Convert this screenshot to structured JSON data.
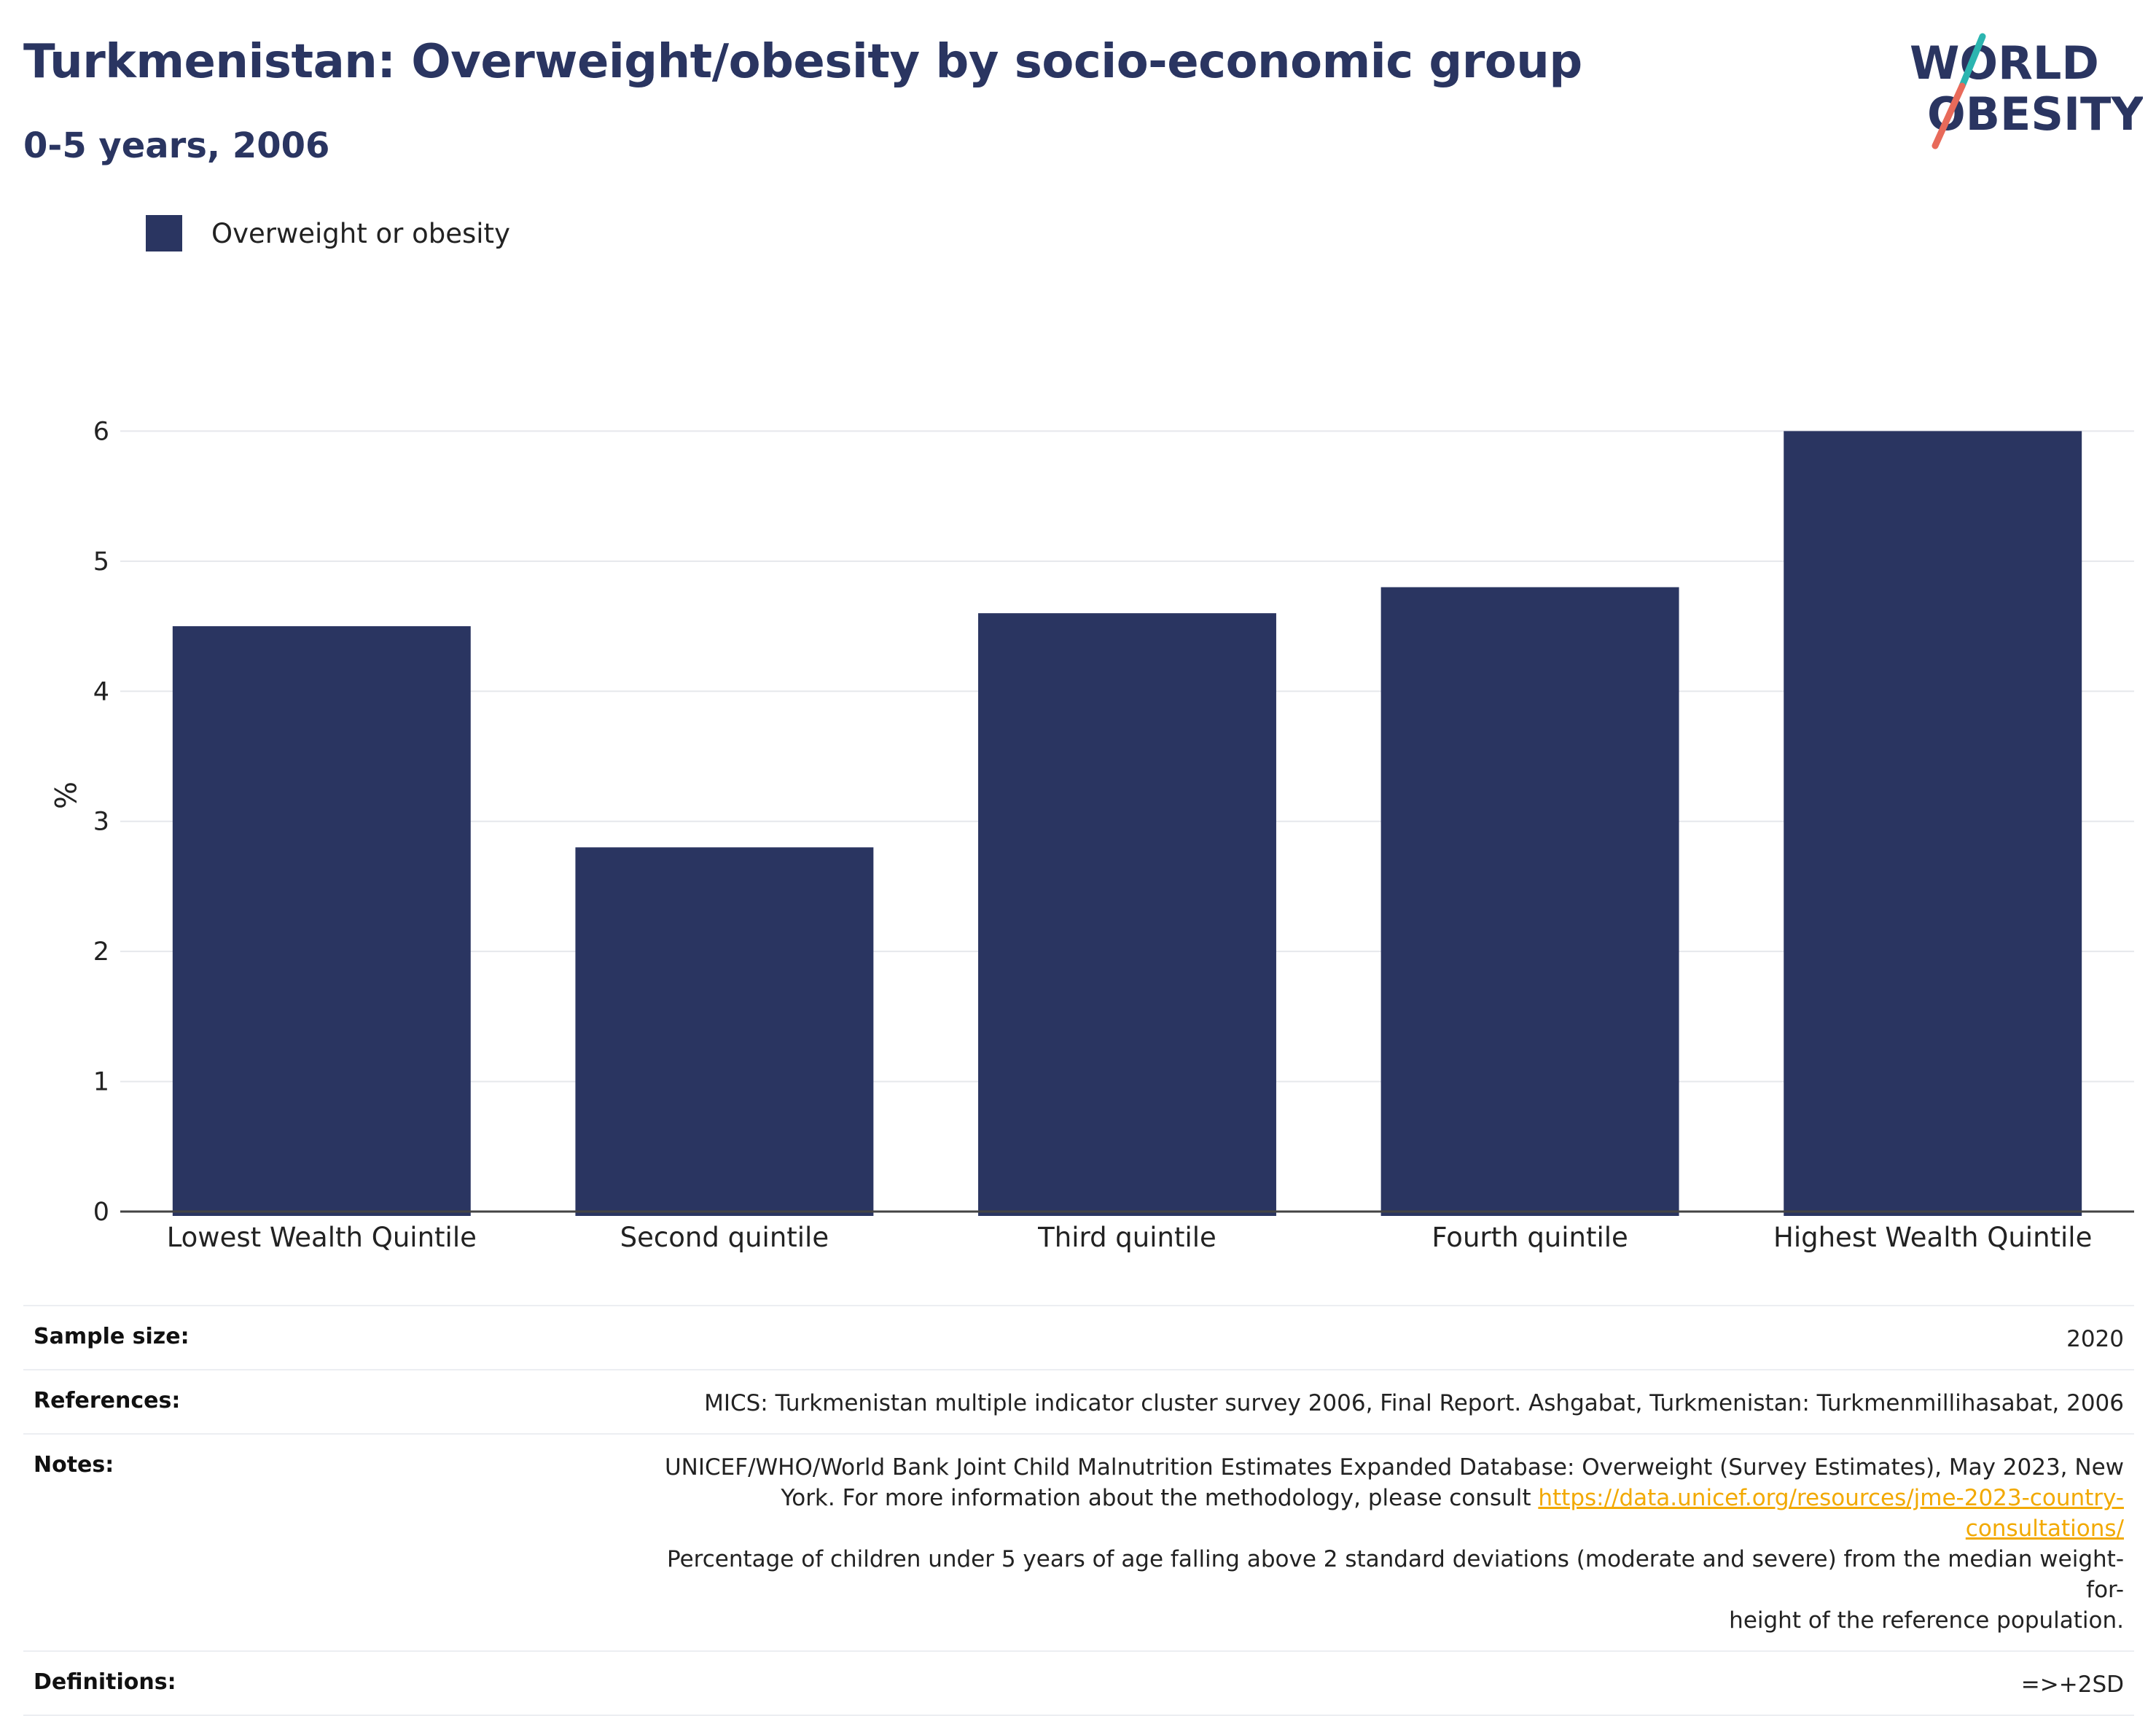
{
  "header": {
    "title": "Turkmenistan: Overweight/obesity by socio-economic group",
    "subtitle": "0-5 years, 2006"
  },
  "logo": {
    "line1": "WORLD",
    "line2": "OBESITY",
    "colors": {
      "text": "#2a3561",
      "slash_top": "#2bb5b0",
      "slash_bottom": "#e86a5a"
    }
  },
  "legend": {
    "label": "Overweight or obesity",
    "color": "#2a3561"
  },
  "chart_data": {
    "type": "bar",
    "categories": [
      "Lowest Wealth Quintile",
      "Second quintile",
      "Third quintile",
      "Fourth quintile",
      "Highest Wealth Quintile"
    ],
    "series": [
      {
        "name": "Overweight or obesity",
        "values": [
          4.5,
          2.8,
          4.6,
          4.8,
          6.0
        ],
        "color": "#2a3561"
      }
    ],
    "ylabel": "%",
    "ylim": [
      0,
      6.4
    ],
    "yticks": [
      0,
      1,
      2,
      3,
      4,
      5,
      6
    ],
    "grid": true,
    "legend_position": "top-left"
  },
  "notes": {
    "sample_size": {
      "label": "Sample size:",
      "value": "2020"
    },
    "references": {
      "label": "References:",
      "value": "MICS: Turkmenistan multiple indicator cluster survey 2006, Final Report. Ashgabat, Turkmenistan: Turkmenmillihasabat, 2006"
    },
    "notes": {
      "label": "Notes:",
      "line1": "UNICEF/WHO/World Bank Joint Child Malnutrition Estimates Expanded Database: Overweight (Survey Estimates), May 2023, New",
      "line2_prefix": "York. For more information about the methodology, please consult ",
      "link": "https://data.unicef.org/resources/jme-2023-country-consultations/",
      "line3": "Percentage of children under 5 years of age falling above 2 standard deviations (moderate and severe) from the median weight-for-",
      "line4": "height of the reference population."
    },
    "definitions": {
      "label": "Definitions:",
      "value": "=>+2SD"
    }
  }
}
